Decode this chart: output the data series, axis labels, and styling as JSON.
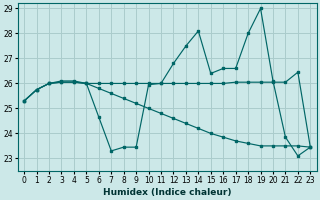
{
  "xlabel": "Humidex (Indice chaleur)",
  "background_color": "#cce8e8",
  "grid_color": "#aacccc",
  "line_color": "#006666",
  "xlim": [
    -0.5,
    23.5
  ],
  "ylim": [
    22.5,
    29.2
  ],
  "xticks": [
    0,
    1,
    2,
    3,
    4,
    5,
    6,
    7,
    8,
    9,
    10,
    11,
    12,
    13,
    14,
    15,
    16,
    17,
    18,
    19,
    20,
    21,
    22,
    23
  ],
  "yticks": [
    23,
    24,
    25,
    26,
    27,
    28,
    29
  ],
  "series": [
    [
      25.3,
      25.75,
      26.0,
      26.05,
      26.05,
      26.0,
      25.8,
      25.6,
      25.4,
      25.2,
      25.0,
      24.8,
      24.6,
      24.4,
      24.2,
      24.0,
      23.85,
      23.7,
      23.6,
      23.5,
      23.5,
      23.5,
      23.5,
      23.45
    ],
    [
      25.3,
      25.75,
      26.0,
      26.05,
      26.05,
      26.0,
      26.0,
      26.0,
      26.0,
      26.0,
      26.0,
      26.0,
      26.0,
      26.0,
      26.0,
      26.0,
      26.0,
      26.05,
      26.05,
      26.05,
      26.05,
      26.05,
      26.45,
      23.45
    ],
    [
      25.3,
      25.75,
      26.0,
      26.1,
      26.1,
      26.0,
      24.65,
      23.3,
      23.45,
      23.45,
      25.95,
      26.0,
      26.8,
      27.5,
      28.1,
      26.4,
      26.6,
      26.6,
      28.0,
      29.0,
      26.1,
      23.85,
      23.1,
      23.45
    ]
  ]
}
